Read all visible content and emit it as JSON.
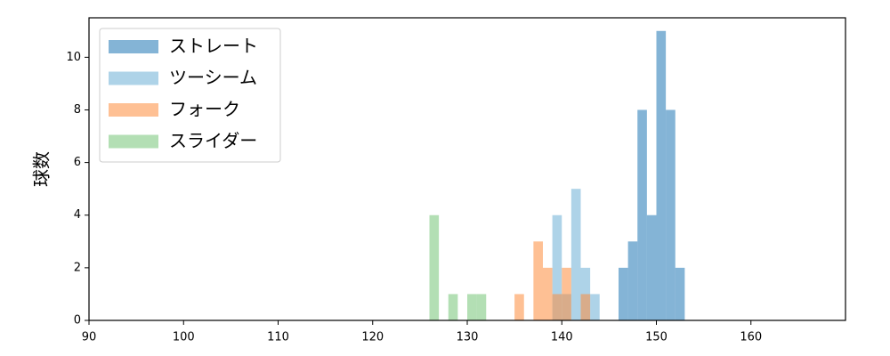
{
  "chart_data": {
    "type": "histogram",
    "y_label": "球数",
    "xlim": [
      90,
      170
    ],
    "ylim": [
      0,
      11.5
    ],
    "xticks": [
      90,
      100,
      110,
      120,
      130,
      140,
      150,
      160
    ],
    "yticks": [
      0,
      2,
      4,
      6,
      8,
      10
    ],
    "legend": "upper left",
    "alpha": 0.55,
    "series": [
      {
        "name": "ストレート",
        "color": "#1f77b4",
        "bins": [
          146,
          147,
          148,
          149,
          150,
          151,
          152,
          153
        ],
        "values": [
          2,
          3,
          8,
          4,
          11,
          8,
          2
        ]
      },
      {
        "name": "ツーシーム",
        "color": "#6baed6",
        "bins": [
          139,
          140,
          141,
          142,
          143,
          144
        ],
        "values": [
          4,
          1,
          5,
          2,
          1
        ]
      },
      {
        "name": "フォーク",
        "color": "#fd8d3c",
        "bins": [
          135,
          136,
          137,
          138,
          139,
          140,
          141,
          142,
          143
        ],
        "values": [
          1,
          0,
          3,
          2,
          1,
          2,
          0,
          1
        ]
      },
      {
        "name": "スライダー",
        "color": "#74c476",
        "bins": [
          126,
          127,
          128,
          129,
          130,
          131,
          132
        ],
        "values": [
          4,
          0,
          1,
          0,
          1,
          1
        ]
      }
    ]
  }
}
